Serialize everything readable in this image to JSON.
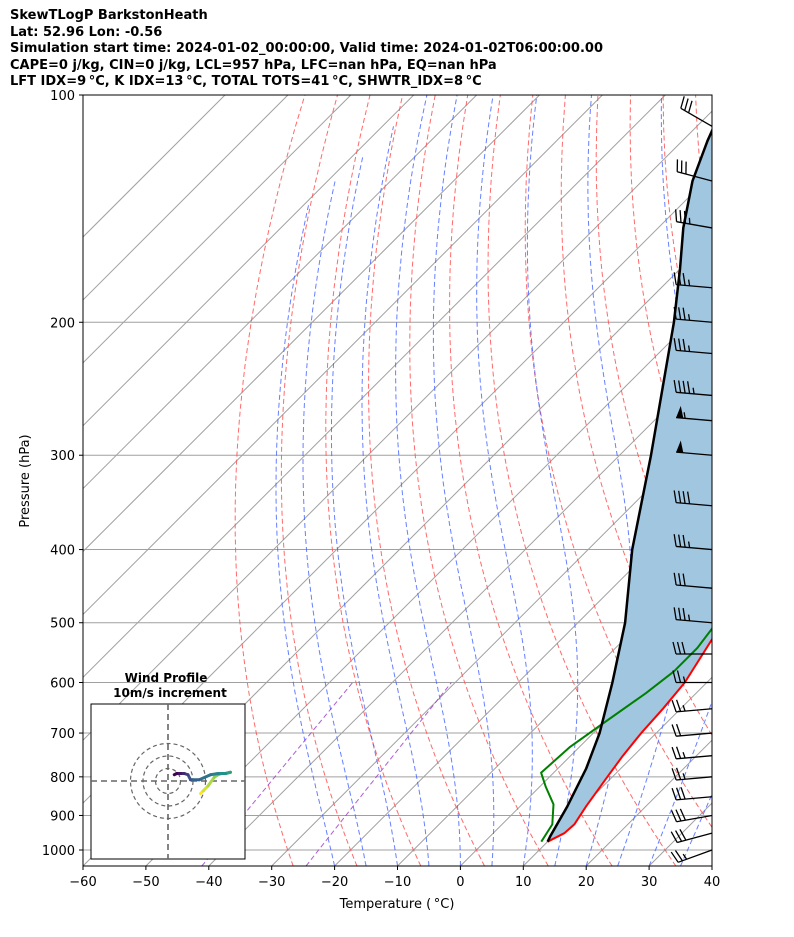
{
  "header": {
    "title": "SkewTLogP BarkstonHeath",
    "location": "Lat: 52.96   Lon: -0.56",
    "times": "Simulation start time: 2024-01-02_00:00:00, Valid time: 2024-01-02T06:00:00.00",
    "indices1": "CAPE=0 j/kg, CIN=0 j/kg, LCL=957 hPa, LFC=nan hPa, EQ=nan hPa",
    "indices2": "LFT IDX=9 °C, K IDX=13 °C, TOTAL TOTS=41 °C, SHWTR_IDX=8 °C"
  },
  "chart_data": {
    "type": "line",
    "subtype": "skew-T log-P diagram",
    "xlabel": "Temperature ( °C)",
    "ylabel": "Pressure (hPa)",
    "xlim": [
      -60,
      40
    ],
    "ylim": [
      1050,
      100
    ],
    "x_ticks": [
      -60,
      -50,
      -40,
      -30,
      -20,
      -10,
      0,
      10,
      20,
      30,
      40
    ],
    "x_tick_labels": [
      "−60",
      "−50",
      "−40",
      "−30",
      "−20",
      "−10",
      "0",
      "10",
      "20",
      "30",
      "40"
    ],
    "y_ticks": [
      1000,
      900,
      800,
      700,
      600,
      500,
      400,
      300,
      200,
      100
    ],
    "y_tick_labels": [
      "1000",
      "900",
      "800",
      "700",
      "600",
      "500",
      "400",
      "300",
      "200",
      "100"
    ],
    "grid": true,
    "y_scale": "log",
    "series": [
      {
        "role": "temperature",
        "color": "#ff0000",
        "points": [
          [
            10,
            975
          ],
          [
            11.3,
            950
          ],
          [
            11.5,
            925
          ],
          [
            10.5,
            875
          ],
          [
            9.2,
            800
          ],
          [
            8.3,
            750
          ],
          [
            7.6,
            700
          ],
          [
            7.2,
            650
          ],
          [
            6.5,
            600
          ],
          [
            3,
            500
          ],
          [
            -0.5,
            420
          ],
          [
            -5,
            350
          ],
          [
            -10,
            300
          ],
          [
            -12.5,
            270
          ],
          [
            -13,
            250
          ],
          [
            -10.5,
            220
          ],
          [
            -8.5,
            200
          ],
          [
            -8,
            180
          ],
          [
            -6.5,
            160
          ],
          [
            -3,
            145
          ],
          [
            3,
            130
          ],
          [
            8,
            120
          ],
          [
            11,
            110
          ],
          [
            13,
            100
          ]
        ]
      },
      {
        "role": "dewpoint",
        "color": "#008000",
        "points": [
          [
            9,
            975
          ],
          [
            8,
            925
          ],
          [
            5,
            870
          ],
          [
            1,
            825
          ],
          [
            -2,
            790
          ],
          [
            -1.5,
            730
          ],
          [
            0,
            680
          ],
          [
            2,
            620
          ],
          [
            3,
            580
          ],
          [
            3,
            540
          ],
          [
            1,
            460
          ],
          [
            -3,
            410
          ],
          [
            -8,
            360
          ],
          [
            -13,
            310
          ],
          [
            -14,
            270
          ],
          [
            -15,
            245
          ],
          [
            -19,
            210
          ],
          [
            -25,
            185
          ],
          [
            -26,
            170
          ],
          [
            -23,
            150
          ],
          [
            -18,
            130
          ],
          [
            -12,
            115
          ],
          [
            -7,
            100
          ]
        ]
      },
      {
        "role": "parcel",
        "color": "#000000",
        "points": [
          [
            10,
            975
          ],
          [
            9.5,
            957
          ],
          [
            7.5,
            875
          ],
          [
            4.5,
            780
          ],
          [
            1,
            700
          ],
          [
            -5,
            600
          ],
          [
            -12.5,
            500
          ],
          [
            -23,
            400
          ],
          [
            -35,
            300
          ],
          [
            -52.5,
            200
          ],
          [
            -60,
            170
          ],
          [
            -66,
            150
          ],
          [
            -72,
            130
          ],
          [
            -76,
            115
          ],
          [
            -80,
            100
          ]
        ]
      }
    ],
    "shaded_area_color": "#a1c6e0",
    "dry_adiabat_color": "#ff5050",
    "moist_adiabat_color": "#4060ff",
    "mixing_ratio_color": "#9933cc",
    "isotherm_color": "#a0a0a0",
    "wind_barbs": [
      {
        "pressure": 1000,
        "speed_kt": 25,
        "dir_deg": 250
      },
      {
        "pressure": 950,
        "speed_kt": 30,
        "dir_deg": 255
      },
      {
        "pressure": 900,
        "speed_kt": 30,
        "dir_deg": 260
      },
      {
        "pressure": 850,
        "speed_kt": 30,
        "dir_deg": 265
      },
      {
        "pressure": 800,
        "speed_kt": 25,
        "dir_deg": 265
      },
      {
        "pressure": 750,
        "speed_kt": 25,
        "dir_deg": 265
      },
      {
        "pressure": 700,
        "speed_kt": 20,
        "dir_deg": 265
      },
      {
        "pressure": 650,
        "speed_kt": 25,
        "dir_deg": 265
      },
      {
        "pressure": 600,
        "speed_kt": 25,
        "dir_deg": 270
      },
      {
        "pressure": 550,
        "speed_kt": 30,
        "dir_deg": 270
      },
      {
        "pressure": 500,
        "speed_kt": 35,
        "dir_deg": 275
      },
      {
        "pressure": 450,
        "speed_kt": 30,
        "dir_deg": 275
      },
      {
        "pressure": 400,
        "speed_kt": 35,
        "dir_deg": 275
      },
      {
        "pressure": 350,
        "speed_kt": 40,
        "dir_deg": 275
      },
      {
        "pressure": 300,
        "speed_kt": 50,
        "dir_deg": 275
      },
      {
        "pressure": 270,
        "speed_kt": 55,
        "dir_deg": 275
      },
      {
        "pressure": 250,
        "speed_kt": 45,
        "dir_deg": 275
      },
      {
        "pressure": 220,
        "speed_kt": 35,
        "dir_deg": 275
      },
      {
        "pressure": 200,
        "speed_kt": 35,
        "dir_deg": 275
      },
      {
        "pressure": 180,
        "speed_kt": 35,
        "dir_deg": 275
      },
      {
        "pressure": 150,
        "speed_kt": 35,
        "dir_deg": 280
      },
      {
        "pressure": 130,
        "speed_kt": 30,
        "dir_deg": 285
      },
      {
        "pressure": 110,
        "speed_kt": 30,
        "dir_deg": 300
      }
    ],
    "hodograph": {
      "title": "Wind Profile",
      "subtitle": "10m/s increment",
      "rings_ms": [
        10,
        20,
        30
      ],
      "colormap_low": "#fde725",
      "colormap_high": "#440154",
      "points_uv": [
        [
          26,
          -10
        ],
        [
          28,
          -8
        ],
        [
          32,
          -4
        ],
        [
          37,
          3
        ],
        [
          40,
          5
        ],
        [
          43,
          6
        ],
        [
          46,
          6
        ],
        [
          50,
          7
        ],
        [
          46,
          6
        ],
        [
          40,
          6
        ],
        [
          34,
          5
        ],
        [
          25,
          1
        ],
        [
          18,
          1
        ],
        [
          16,
          5
        ],
        [
          13,
          6
        ],
        [
          10,
          6
        ],
        [
          7,
          6
        ],
        [
          5,
          5
        ]
      ]
    }
  }
}
